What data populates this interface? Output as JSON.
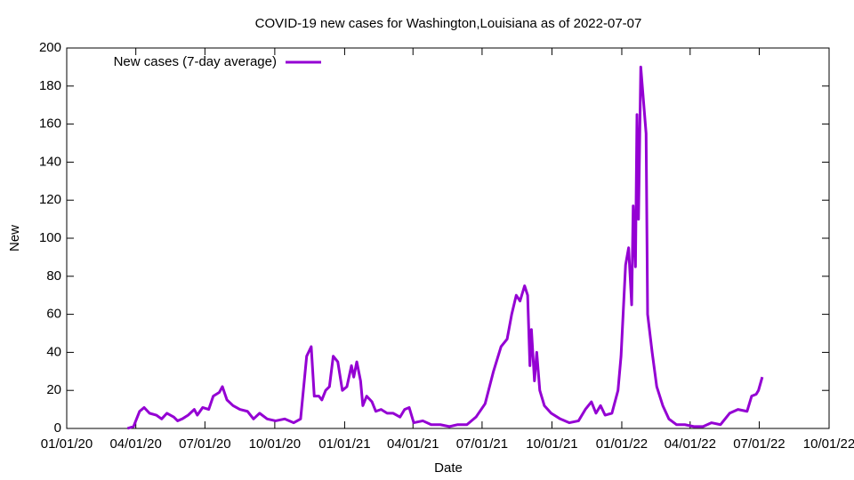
{
  "chart_data": {
    "type": "line",
    "title": "COVID-19 new cases for Washington,Louisiana as of 2022-07-07",
    "x_label": "Date",
    "y_label": "New",
    "legend_position": "top-left",
    "x": [
      "2020-03-21",
      "2020-03-29",
      "2020-04-06",
      "2020-04-12",
      "2020-04-19",
      "2020-04-28",
      "2020-05-05",
      "2020-05-12",
      "2020-05-21",
      "2020-05-26",
      "2020-06-01",
      "2020-06-09",
      "2020-06-17",
      "2020-06-21",
      "2020-06-28",
      "2020-07-06",
      "2020-07-12",
      "2020-07-20",
      "2020-07-24",
      "2020-07-30",
      "2020-08-07",
      "2020-08-16",
      "2020-08-26",
      "2020-09-03",
      "2020-09-11",
      "2020-09-21",
      "2020-10-02",
      "2020-10-14",
      "2020-10-26",
      "2020-11-04",
      "2020-11-12",
      "2020-11-18",
      "2020-11-22",
      "2020-11-28",
      "2020-12-02",
      "2020-12-07",
      "2020-12-12",
      "2020-12-17",
      "2020-12-23",
      "2020-12-29",
      "2021-01-04",
      "2021-01-10",
      "2021-01-13",
      "2021-01-17",
      "2021-01-22",
      "2021-01-25",
      "2021-01-30",
      "2021-02-06",
      "2021-02-11",
      "2021-02-18",
      "2021-02-26",
      "2021-03-06",
      "2021-03-15",
      "2021-03-21",
      "2021-03-27",
      "2021-04-02",
      "2021-04-14",
      "2021-04-25",
      "2021-05-07",
      "2021-05-19",
      "2021-05-30",
      "2021-06-11",
      "2021-06-23",
      "2021-07-05",
      "2021-07-16",
      "2021-07-26",
      "2021-08-03",
      "2021-08-09",
      "2021-08-15",
      "2021-08-20",
      "2021-08-26",
      "2021-08-30",
      "2021-09-02",
      "2021-09-04",
      "2021-09-08",
      "2021-09-11",
      "2021-09-15",
      "2021-09-21",
      "2021-09-30",
      "2021-10-12",
      "2021-10-24",
      "2021-11-05",
      "2021-11-14",
      "2021-11-22",
      "2021-11-28",
      "2021-12-04",
      "2021-12-10",
      "2021-12-19",
      "2021-12-27",
      "2021-12-31",
      "2022-01-06",
      "2022-01-10",
      "2022-01-14",
      "2022-01-16",
      "2022-01-19",
      "2022-01-21",
      "2022-01-23",
      "2022-01-26",
      "2022-01-29",
      "2022-02-02",
      "2022-02-04",
      "2022-02-10",
      "2022-02-16",
      "2022-02-24",
      "2022-03-04",
      "2022-03-14",
      "2022-03-25",
      "2022-04-06",
      "2022-04-18",
      "2022-04-29",
      "2022-05-11",
      "2022-05-23",
      "2022-06-03",
      "2022-06-15",
      "2022-06-21",
      "2022-06-27",
      "2022-06-30",
      "2022-07-05"
    ],
    "series": [
      {
        "name": "New cases (7-day average)",
        "color": "#9400d3",
        "values": [
          0,
          1,
          9,
          11,
          8,
          7,
          5,
          8,
          6,
          4,
          5,
          7,
          10,
          7,
          11,
          10,
          17,
          19,
          22,
          15,
          12,
          10,
          9,
          5,
          8,
          5,
          4,
          5,
          3,
          5,
          38,
          43,
          17,
          17,
          15,
          20,
          22,
          38,
          35,
          20,
          22,
          33,
          27,
          35,
          25,
          12,
          17,
          14,
          9,
          10,
          8,
          8,
          6,
          10,
          11,
          3,
          4,
          2,
          2,
          1,
          2,
          2,
          6,
          13,
          30,
          43,
          47,
          60,
          70,
          67,
          75,
          70,
          33,
          52,
          25,
          40,
          20,
          12,
          8,
          5,
          3,
          4,
          10,
          14,
          8,
          12,
          7,
          8,
          20,
          38,
          86,
          95,
          65,
          117,
          85,
          165,
          110,
          190,
          175,
          155,
          60,
          40,
          22,
          12,
          5,
          2,
          2,
          1,
          1,
          3,
          2,
          8,
          10,
          9,
          17,
          18,
          20,
          27
        ]
      }
    ],
    "xlim": [
      "2020-01-01",
      "2022-10-01"
    ],
    "xticks": [
      {
        "value": "2020-01-01",
        "label": "01/01/20"
      },
      {
        "value": "2020-04-01",
        "label": "04/01/20"
      },
      {
        "value": "2020-07-01",
        "label": "07/01/20"
      },
      {
        "value": "2020-10-01",
        "label": "10/01/20"
      },
      {
        "value": "2021-01-01",
        "label": "01/01/21"
      },
      {
        "value": "2021-04-01",
        "label": "04/01/21"
      },
      {
        "value": "2021-07-01",
        "label": "07/01/21"
      },
      {
        "value": "2021-10-01",
        "label": "10/01/21"
      },
      {
        "value": "2022-01-01",
        "label": "01/01/22"
      },
      {
        "value": "2022-04-01",
        "label": "04/01/22"
      },
      {
        "value": "2022-07-01",
        "label": "07/01/22"
      },
      {
        "value": "2022-10-01",
        "label": "10/01/22"
      }
    ],
    "ylim": [
      0,
      200
    ],
    "yticks": [
      0,
      20,
      40,
      60,
      80,
      100,
      120,
      140,
      160,
      180,
      200
    ],
    "grid": false
  }
}
